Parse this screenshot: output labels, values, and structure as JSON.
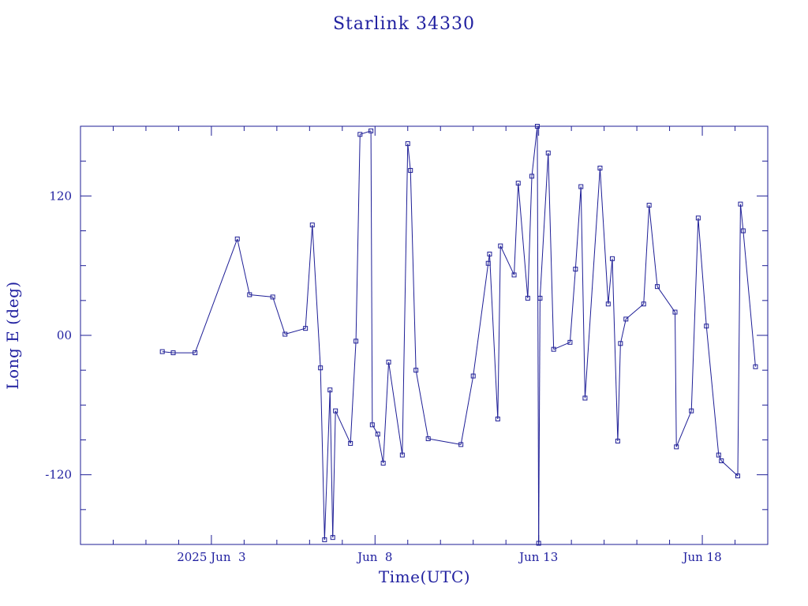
{
  "colors": {
    "ink": "#1e1e96",
    "background": "#ffffff"
  },
  "chart_data": {
    "type": "line",
    "title": "Starlink 34330",
    "xlabel": "Time(UTC)",
    "ylabel": "Long E (deg)",
    "x_axis": {
      "unit": "day of 2025 (UTC)",
      "range": [
        "2025-05-30T00:00",
        "2025-06-20T00:00"
      ],
      "tick_labels": [
        {
          "x": "2025-06-03",
          "label": "2025 Jun  3"
        },
        {
          "x": "2025-06-08",
          "label": "Jun  8"
        },
        {
          "x": "2025-06-13",
          "label": "Jun 13"
        },
        {
          "x": "2025-06-18",
          "label": "Jun 18"
        }
      ],
      "minor_tick_every_days": 1
    },
    "y_axis": {
      "range": [
        -180,
        180
      ],
      "tick_labels": [
        {
          "y": 120,
          "label": "120"
        },
        {
          "y": 0,
          "label": "00"
        },
        {
          "y": -120,
          "label": "-120"
        }
      ],
      "minor_tick_every": 30
    },
    "grid": false,
    "legend": "none",
    "marker": "small square",
    "note": "longitude wraps at ±180°; segments crossing the boundary run off the plot edge",
    "series": [
      {
        "points": [
          [
            "2025-06-01T12:00",
            -14
          ],
          [
            "2025-06-01T20:00",
            -15
          ],
          [
            "2025-06-02T12:00",
            -15
          ],
          [
            "2025-06-03T19:00",
            83
          ],
          [
            "2025-06-04T04:00",
            35
          ],
          [
            "2025-06-04T21:00",
            33
          ],
          [
            "2025-06-05T06:00",
            1
          ],
          [
            "2025-06-05T21:00",
            6
          ],
          [
            "2025-06-06T02:00",
            95
          ],
          [
            "2025-06-06T08:00",
            -28
          ],
          [
            "2025-06-06T11:00",
            -176
          ],
          [
            "2025-06-06T15:00",
            -47
          ],
          [
            "2025-06-06T17:00",
            -174
          ],
          [
            "2025-06-06T19:00",
            -65
          ],
          [
            "2025-06-07T06:00",
            -93
          ],
          [
            "2025-06-07T10:00",
            -5
          ],
          [
            "2025-06-07T13:00",
            173
          ],
          [
            "2025-06-07T21:00",
            176
          ],
          [
            "2025-06-07T22:00",
            -77
          ],
          [
            "2025-06-08T02:00",
            -85
          ],
          [
            "2025-06-08T06:00",
            -110
          ],
          [
            "2025-06-08T10:00",
            -23
          ],
          [
            "2025-06-08T20:00",
            -103
          ],
          [
            "2025-06-09T00:00",
            165
          ],
          [
            "2025-06-09T02:00",
            142
          ],
          [
            "2025-06-09T06:00",
            -30
          ],
          [
            "2025-06-09T15:00",
            -89
          ],
          [
            "2025-06-10T15:00",
            -94
          ],
          [
            "2025-06-11T00:00",
            -35
          ],
          [
            "2025-06-11T11:00",
            62
          ],
          [
            "2025-06-11T12:00",
            70
          ],
          [
            "2025-06-11T18:00",
            -72
          ],
          [
            "2025-06-11T20:00",
            77
          ],
          [
            "2025-06-12T06:00",
            52
          ],
          [
            "2025-06-12T09:00",
            131
          ],
          [
            "2025-06-12T16:00",
            32
          ],
          [
            "2025-06-12T19:00",
            137
          ],
          [
            "2025-06-12T23:00",
            180
          ],
          [
            "2025-06-13T00:00",
            -179
          ],
          [
            "2025-06-13T01:00",
            32
          ],
          [
            "2025-06-13T07:00",
            157
          ],
          [
            "2025-06-13T11:00",
            -12
          ],
          [
            "2025-06-13T23:00",
            -6
          ],
          [
            "2025-06-14T03:00",
            57
          ],
          [
            "2025-06-14T07:00",
            128
          ],
          [
            "2025-06-14T10:00",
            -54
          ],
          [
            "2025-06-14T21:00",
            144
          ],
          [
            "2025-06-15T03:00",
            27
          ],
          [
            "2025-06-15T06:00",
            66
          ],
          [
            "2025-06-15T10:00",
            -91
          ],
          [
            "2025-06-15T12:00",
            -7
          ],
          [
            "2025-06-15T16:00",
            14
          ],
          [
            "2025-06-16T05:00",
            27
          ],
          [
            "2025-06-16T09:00",
            112
          ],
          [
            "2025-06-16T15:00",
            42
          ],
          [
            "2025-06-17T04:00",
            20
          ],
          [
            "2025-06-17T05:00",
            -96
          ],
          [
            "2025-06-17T16:00",
            -65
          ],
          [
            "2025-06-17T21:00",
            101
          ],
          [
            "2025-06-18T03:00",
            8
          ],
          [
            "2025-06-18T12:00",
            -103
          ],
          [
            "2025-06-18T14:00",
            -108
          ],
          [
            "2025-06-19T02:00",
            -121
          ],
          [
            "2025-06-19T04:00",
            113
          ],
          [
            "2025-06-19T06:00",
            90
          ],
          [
            "2025-06-19T15:00",
            -27
          ]
        ]
      }
    ]
  }
}
